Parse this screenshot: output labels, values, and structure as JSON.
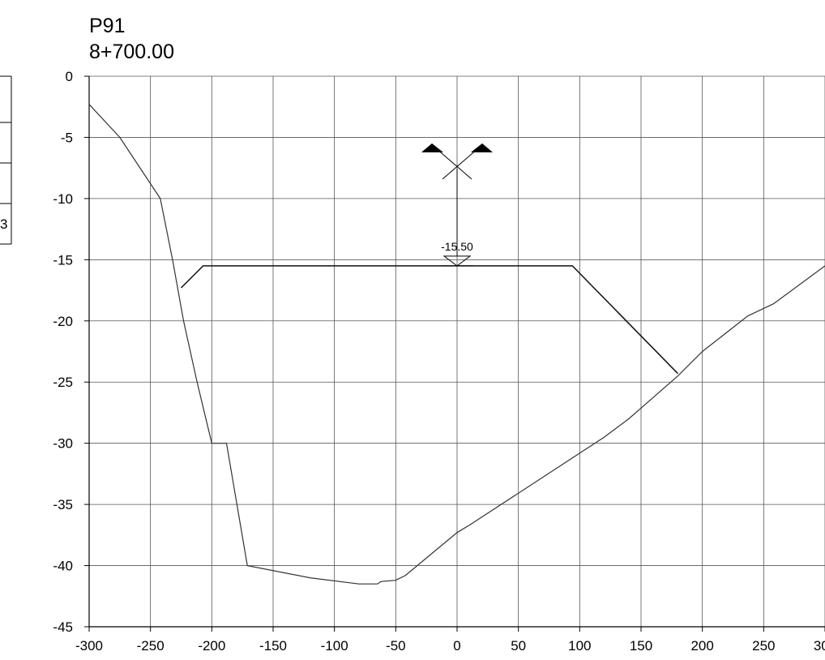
{
  "chart_data": {
    "type": "line",
    "title": "P91",
    "subtitle": "8+700.00",
    "xlabel": "",
    "ylabel": "",
    "xlim": [
      -300,
      300
    ],
    "ylim": [
      -45,
      0
    ],
    "grid": true,
    "x_ticks": [
      -300,
      -250,
      -200,
      -150,
      -100,
      -50,
      0,
      50,
      100,
      150,
      200,
      250,
      300
    ],
    "y_ticks": [
      0,
      -5,
      -10,
      -15,
      -20,
      -25,
      -30,
      -35,
      -40,
      -45
    ],
    "series": [
      {
        "points": [
          [
            -300,
            -2.3
          ],
          [
            -275,
            -5
          ],
          [
            -242,
            -10
          ],
          [
            -232,
            -15
          ],
          [
            -223,
            -20
          ],
          [
            -212,
            -25
          ],
          [
            -200,
            -30
          ],
          [
            -188,
            -30
          ],
          [
            -171,
            -40
          ],
          [
            -120,
            -41
          ],
          [
            -80,
            -41.5
          ],
          [
            -65,
            -41.5
          ],
          [
            -62,
            -41.3
          ],
          [
            -50,
            -41.2
          ],
          [
            -42,
            -40.8
          ],
          [
            -30,
            -39.8
          ],
          [
            0,
            -37.3
          ],
          [
            10,
            -36.7
          ],
          [
            120,
            -29.5
          ],
          [
            140,
            -28
          ],
          [
            180,
            -24.5
          ],
          [
            200,
            -22.5
          ],
          [
            237,
            -19.6
          ],
          [
            258,
            -18.6
          ],
          [
            300,
            -15.5
          ]
        ],
        "color": "#333333"
      },
      {
        "points": [
          [
            -225,
            -17.3
          ],
          [
            -207,
            -15.5
          ],
          [
            94,
            -15.5
          ],
          [
            180,
            -24.3
          ]
        ],
        "color": "#111111"
      }
    ],
    "annotations": [
      {
        "label": "-15.50",
        "x": 0,
        "y": -15.5
      }
    ]
  },
  "side_table": {
    "rows": [
      "",
      "",
      "",
      "3"
    ]
  }
}
